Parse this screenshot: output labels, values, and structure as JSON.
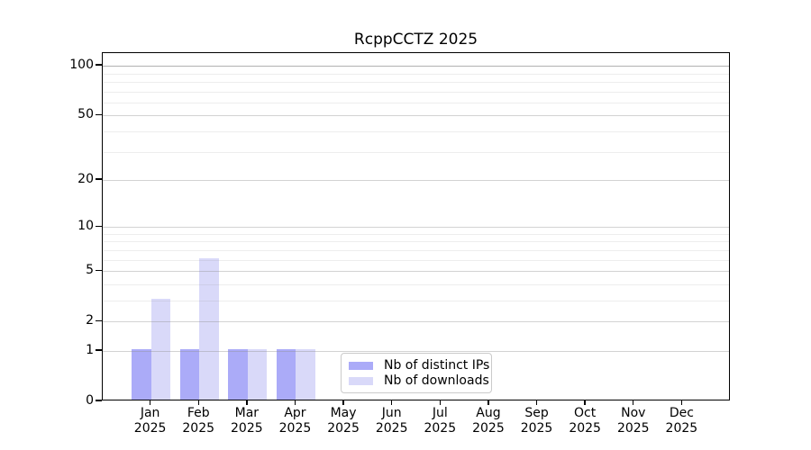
{
  "chart_data": {
    "type": "bar",
    "title": "RcppCCTZ 2025",
    "x_months": [
      "Jan",
      "Feb",
      "Mar",
      "Apr",
      "May",
      "Jun",
      "Jul",
      "Aug",
      "Sep",
      "Oct",
      "Nov",
      "Dec"
    ],
    "x_year": "2025",
    "series": [
      {
        "name": "Nb of distinct IPs",
        "color": "#ababf8",
        "values": [
          1,
          1,
          1,
          1,
          0,
          0,
          0,
          0,
          0,
          0,
          0,
          0
        ]
      },
      {
        "name": "Nb of downloads",
        "color": "#d9d9f9",
        "values": [
          3,
          6,
          1,
          1,
          0,
          0,
          0,
          0,
          0,
          0,
          0,
          0
        ]
      }
    ],
    "yscale": "log1p",
    "y_ticks": [
      0,
      1,
      2,
      5,
      10,
      20,
      50,
      100
    ],
    "y_minor_gridlines": [
      3,
      4,
      6,
      7,
      8,
      9,
      30,
      40,
      60,
      70,
      80,
      90
    ],
    "ylim": [
      0,
      118
    ],
    "grid": true,
    "legend_position": "inside lower-center"
  }
}
